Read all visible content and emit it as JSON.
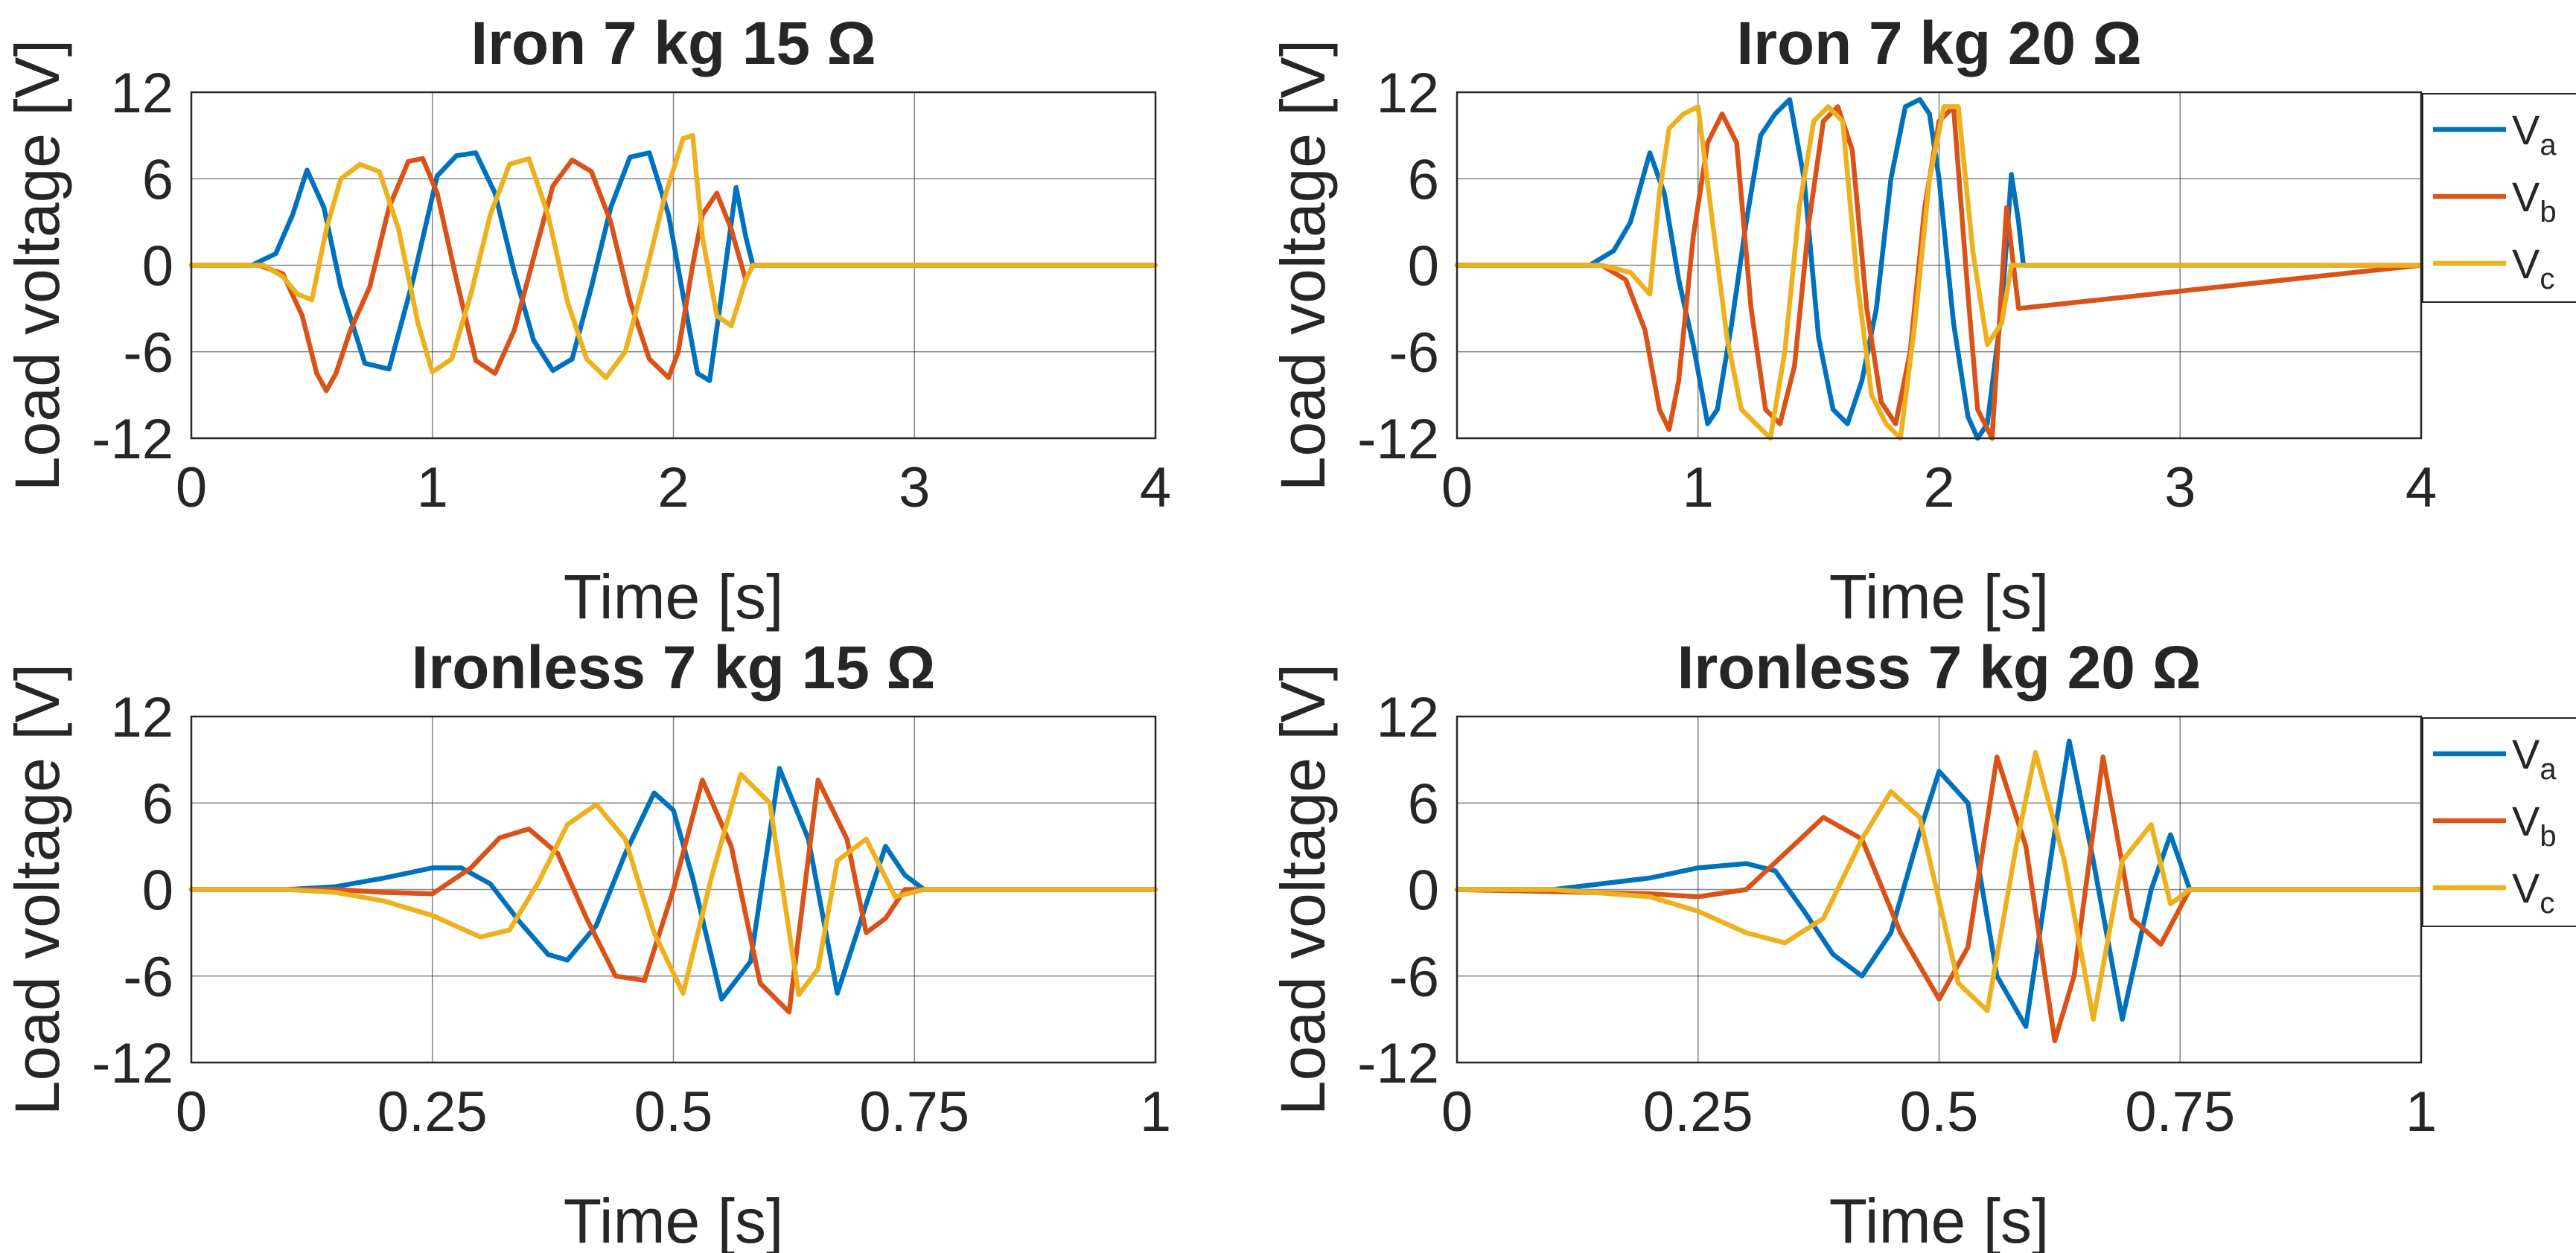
{
  "chart_data": [
    {
      "type": "line",
      "title": "Iron 7 kg 15 Ω",
      "xlabel": "Time [s]",
      "ylabel": "Load voltage [V]",
      "xlim": [
        0,
        4
      ],
      "ylim": [
        -12,
        12
      ],
      "xticks": [
        "0",
        "1",
        "2",
        "3",
        "4"
      ],
      "yticks": [
        "12",
        "6",
        "0",
        "-6",
        "-12"
      ],
      "grid": true,
      "legend": null,
      "series": [
        {
          "name": "Va",
          "color": "#0072BD",
          "x": [
            0,
            0.25,
            0.35,
            0.42,
            0.48,
            0.55,
            0.62,
            0.72,
            0.82,
            0.92,
            1.02,
            1.1,
            1.18,
            1.26,
            1.34,
            1.42,
            1.5,
            1.58,
            1.66,
            1.74,
            1.82,
            1.9,
            1.98,
            2.05,
            2.1,
            2.15,
            2.2,
            2.26,
            2.3,
            2.33,
            4
          ],
          "y": [
            0,
            0,
            0.8,
            3.5,
            6.6,
            4,
            -1.5,
            -6.8,
            -7.2,
            -1,
            6.2,
            7.6,
            7.8,
            5,
            -0.5,
            -5.2,
            -7.3,
            -6.5,
            -1.5,
            4,
            7.5,
            7.8,
            3.5,
            -3,
            -7.5,
            -8,
            -2,
            5.4,
            2,
            0,
            0
          ]
        },
        {
          "name": "Vb",
          "color": "#D95319",
          "x": [
            0,
            0.28,
            0.38,
            0.46,
            0.52,
            0.56,
            0.6,
            0.66,
            0.74,
            0.82,
            0.9,
            0.96,
            1.02,
            1.1,
            1.18,
            1.26,
            1.34,
            1.42,
            1.5,
            1.58,
            1.66,
            1.74,
            1.82,
            1.9,
            1.98,
            2.02,
            2.08,
            2.12,
            2.18,
            2.24,
            2.3,
            2.33,
            4
          ],
          "y": [
            0,
            0,
            -0.6,
            -3.5,
            -7.5,
            -8.7,
            -7.5,
            -4.5,
            -1.5,
            4,
            7.2,
            7.4,
            5,
            -1,
            -6.6,
            -7.5,
            -4.5,
            0.5,
            5.5,
            7.3,
            6.5,
            3,
            -2.5,
            -6.5,
            -7.8,
            -6,
            0,
            3.5,
            5,
            2.5,
            -1,
            0,
            0
          ]
        },
        {
          "name": "Vc",
          "color": "#EDB120",
          "x": [
            0,
            0.3,
            0.38,
            0.44,
            0.5,
            0.56,
            0.62,
            0.7,
            0.78,
            0.86,
            0.94,
            1.0,
            1.08,
            1.16,
            1.24,
            1.32,
            1.4,
            1.48,
            1.56,
            1.64,
            1.72,
            1.8,
            1.88,
            1.96,
            2.04,
            2.08,
            2.12,
            2.18,
            2.24,
            2.3,
            2.33,
            4
          ],
          "y": [
            0,
            0,
            -0.8,
            -2,
            -2.4,
            2.5,
            6,
            7,
            6.5,
            2.5,
            -4,
            -7.4,
            -6.5,
            -2,
            3.5,
            7,
            7.4,
            3.5,
            -2.5,
            -6.5,
            -7.8,
            -6,
            -1,
            4.5,
            8.8,
            9,
            2,
            -3.5,
            -4.2,
            -1,
            0,
            0
          ]
        }
      ]
    },
    {
      "type": "line",
      "title": "Iron 7 kg 20 Ω",
      "xlabel": "Time [s]",
      "ylabel": "Load voltage [V]",
      "xlim": [
        0,
        4
      ],
      "ylim": [
        -12,
        12
      ],
      "xticks": [
        "0",
        "1",
        "2",
        "3",
        "4"
      ],
      "yticks": [
        "12",
        "6",
        "0",
        "-6",
        "-12"
      ],
      "grid": true,
      "legend": {
        "position": "outside-right",
        "entries": [
          "Va",
          "Vb",
          "Vc"
        ]
      },
      "legend_labels": [
        {
          "main": "V",
          "sub": "a"
        },
        {
          "main": "V",
          "sub": "b"
        },
        {
          "main": "V",
          "sub": "c"
        }
      ],
      "series": [
        {
          "name": "Va",
          "color": "#0072BD",
          "x": [
            0,
            0.55,
            0.65,
            0.72,
            0.8,
            0.86,
            0.92,
            0.98,
            1.04,
            1.08,
            1.14,
            1.2,
            1.26,
            1.32,
            1.38,
            1.44,
            1.5,
            1.56,
            1.62,
            1.68,
            1.74,
            1.8,
            1.86,
            1.92,
            1.96,
            2.0,
            2.06,
            2.12,
            2.16,
            2.2,
            2.26,
            2.3,
            2.33,
            2.35,
            4
          ],
          "y": [
            0,
            0,
            1,
            3,
            7.8,
            5,
            -1,
            -5.5,
            -11,
            -10,
            -4,
            3,
            9,
            10.5,
            11.5,
            6,
            -5,
            -10,
            -11,
            -8,
            -3,
            6,
            11,
            11.5,
            10.5,
            6,
            -4,
            -10.5,
            -12,
            -11,
            -3,
            6.3,
            3,
            0,
            0
          ]
        },
        {
          "name": "Vb",
          "color": "#D95319",
          "x": [
            0,
            0.6,
            0.7,
            0.78,
            0.84,
            0.88,
            0.92,
            0.98,
            1.04,
            1.1,
            1.16,
            1.22,
            1.28,
            1.34,
            1.4,
            1.46,
            1.52,
            1.58,
            1.64,
            1.7,
            1.76,
            1.82,
            1.88,
            1.94,
            2.0,
            2.06,
            2.12,
            2.16,
            2.22,
            2.28,
            2.33,
            4
          ],
          "y": [
            0,
            0,
            -1,
            -4.5,
            -10,
            -11.4,
            -8,
            2,
            8.5,
            10.5,
            8.5,
            -3,
            -10,
            -11,
            -7,
            3,
            10,
            11,
            8,
            -3,
            -9.5,
            -11,
            -6,
            4,
            10,
            11,
            -2,
            -10,
            -12,
            4,
            -3,
            0
          ]
        },
        {
          "name": "Vc",
          "color": "#EDB120",
          "x": [
            0,
            0.6,
            0.72,
            0.8,
            0.84,
            0.88,
            0.94,
            1.0,
            1.06,
            1.12,
            1.18,
            1.24,
            1.3,
            1.36,
            1.42,
            1.48,
            1.54,
            1.6,
            1.66,
            1.72,
            1.78,
            1.84,
            1.9,
            1.96,
            2.02,
            2.08,
            2.14,
            2.2,
            2.26,
            2.3,
            2.33,
            4
          ],
          "y": [
            0,
            0,
            -0.5,
            -2,
            5,
            9.5,
            10.5,
            11,
            3,
            -5,
            -10,
            -11,
            -12,
            -6,
            4,
            10,
            11,
            10,
            -1,
            -9,
            -11,
            -12,
            -4,
            6,
            11,
            11,
            1,
            -5.5,
            -4,
            0,
            0,
            0
          ]
        }
      ]
    },
    {
      "type": "line",
      "title": "Ironless 7 kg 15 Ω",
      "xlabel": "Time [s]",
      "ylabel": "Load voltage [V]",
      "xlim": [
        0,
        1
      ],
      "ylim": [
        -12,
        12
      ],
      "xticks": [
        "0",
        "0.25",
        "0.5",
        "0.75",
        "1"
      ],
      "yticks": [
        "12",
        "6",
        "0",
        "-6",
        "-12"
      ],
      "grid": true,
      "legend": null,
      "series": [
        {
          "name": "Va",
          "color": "#0072BD",
          "x": [
            0,
            0.1,
            0.15,
            0.2,
            0.25,
            0.28,
            0.31,
            0.34,
            0.37,
            0.39,
            0.42,
            0.45,
            0.48,
            0.5,
            0.52,
            0.55,
            0.58,
            0.61,
            0.64,
            0.67,
            0.7,
            0.72,
            0.74,
            0.76,
            1
          ],
          "y": [
            0,
            0,
            0.2,
            0.8,
            1.5,
            1.5,
            0.4,
            -2.2,
            -4.5,
            -4.9,
            -2.5,
            2.5,
            6.7,
            5.5,
            0.8,
            -7.6,
            -5,
            8.4,
            3.5,
            -7.2,
            -1,
            3,
            1,
            0,
            0
          ]
        },
        {
          "name": "Vb",
          "color": "#D95319",
          "x": [
            0,
            0.15,
            0.2,
            0.25,
            0.29,
            0.32,
            0.35,
            0.38,
            0.41,
            0.44,
            0.47,
            0.5,
            0.53,
            0.56,
            0.59,
            0.62,
            0.65,
            0.68,
            0.7,
            0.72,
            0.74,
            0.76,
            1
          ],
          "y": [
            0,
            0,
            -0.2,
            -0.3,
            1.5,
            3.6,
            4.2,
            2.5,
            -2,
            -6,
            -6.3,
            0,
            7.6,
            3,
            -6.5,
            -8.5,
            7.6,
            3.5,
            -3,
            -2,
            0,
            0,
            0
          ]
        },
        {
          "name": "Vc",
          "color": "#EDB120",
          "x": [
            0,
            0.1,
            0.15,
            0.2,
            0.25,
            0.3,
            0.33,
            0.36,
            0.39,
            0.42,
            0.45,
            0.48,
            0.51,
            0.54,
            0.57,
            0.6,
            0.63,
            0.65,
            0.67,
            0.7,
            0.73,
            0.76,
            1
          ],
          "y": [
            0,
            0,
            -0.2,
            -0.8,
            -1.8,
            -3.3,
            -2.8,
            0.5,
            4.5,
            5.9,
            3.5,
            -3,
            -7.2,
            1,
            8,
            6,
            -7.3,
            -5.5,
            2,
            3.5,
            -0.5,
            0,
            0
          ]
        }
      ]
    },
    {
      "type": "line",
      "title": "Ironless 7 kg 20 Ω",
      "xlabel": "Time [s]",
      "ylabel": "Load voltage [V]",
      "xlim": [
        0,
        1
      ],
      "ylim": [
        -12,
        12
      ],
      "xticks": [
        "0",
        "0.25",
        "0.5",
        "0.75",
        "1"
      ],
      "yticks": [
        "12",
        "6",
        "0",
        "-6",
        "-12"
      ],
      "grid": true,
      "legend": {
        "position": "outside-right",
        "entries": [
          "Va",
          "Vb",
          "Vc"
        ]
      },
      "legend_labels": [
        {
          "main": "V",
          "sub": "a"
        },
        {
          "main": "V",
          "sub": "b"
        },
        {
          "main": "V",
          "sub": "c"
        }
      ],
      "series": [
        {
          "name": "Va",
          "color": "#0072BD",
          "x": [
            0,
            0.1,
            0.2,
            0.25,
            0.3,
            0.33,
            0.36,
            0.39,
            0.42,
            0.45,
            0.48,
            0.5,
            0.53,
            0.56,
            0.59,
            0.62,
            0.635,
            0.66,
            0.69,
            0.72,
            0.74,
            0.76,
            1
          ],
          "y": [
            0,
            0,
            0.8,
            1.5,
            1.8,
            1.3,
            -1.5,
            -4.5,
            -6,
            -3,
            4,
            8.2,
            6,
            -6,
            -9.5,
            4,
            10.3,
            2,
            -9,
            0,
            3.8,
            0,
            0
          ]
        },
        {
          "name": "Vb",
          "color": "#D95319",
          "x": [
            0,
            0.2,
            0.25,
            0.3,
            0.34,
            0.38,
            0.42,
            0.46,
            0.5,
            0.53,
            0.56,
            0.59,
            0.62,
            0.64,
            0.67,
            0.7,
            0.73,
            0.76,
            1
          ],
          "y": [
            0,
            -0.3,
            -0.5,
            0,
            2.5,
            5,
            3.5,
            -3,
            -7.6,
            -4,
            9.2,
            3,
            -10.5,
            -6,
            9.2,
            -2,
            -3.8,
            0,
            0
          ]
        },
        {
          "name": "Vc",
          "color": "#EDB120",
          "x": [
            0,
            0.1,
            0.2,
            0.25,
            0.3,
            0.34,
            0.38,
            0.42,
            0.45,
            0.48,
            0.52,
            0.55,
            0.58,
            0.6,
            0.63,
            0.66,
            0.69,
            0.72,
            0.74,
            0.76,
            1
          ],
          "y": [
            0,
            0,
            -0.5,
            -1.5,
            -3,
            -3.7,
            -2,
            3.5,
            6.8,
            5,
            -6.5,
            -8.4,
            3,
            9.5,
            2,
            -9,
            2,
            4.5,
            -1,
            0,
            0
          ]
        }
      ]
    }
  ]
}
